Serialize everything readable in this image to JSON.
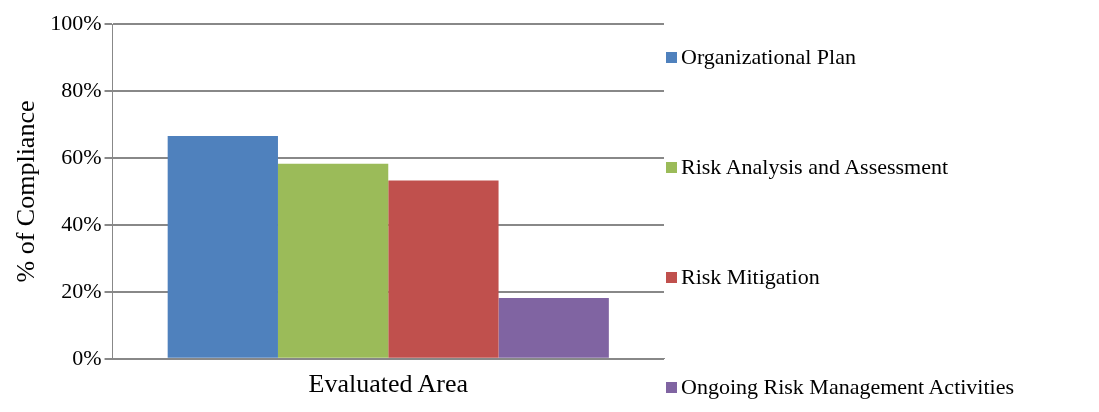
{
  "chart_data": {
    "type": "bar",
    "ylabel": "% of Compliance",
    "categories": [
      "Evaluated Area"
    ],
    "series": [
      {
        "name": "Organizational Plan",
        "color": "#4f81bd",
        "values": [
          66.6
        ]
      },
      {
        "name": "Risk Analysis and Assessment",
        "color": "#9bbb59",
        "values": [
          58.3
        ]
      },
      {
        "name": "Risk Mitigation",
        "color": "#c0504d",
        "values": [
          53.3
        ]
      },
      {
        "name": "Ongoing Risk Management Activities",
        "color": "#8064a2",
        "values": [
          18.2
        ]
      }
    ],
    "ylim": [
      0,
      100
    ],
    "yticks": [
      {
        "value": 0,
        "label": "0%"
      },
      {
        "value": 20,
        "label": "20%"
      },
      {
        "value": 40,
        "label": "40%"
      },
      {
        "value": 60,
        "label": "60%"
      },
      {
        "value": 80,
        "label": "80%"
      },
      {
        "value": 100,
        "label": "100%"
      }
    ],
    "grid": "y",
    "legend": "right"
  }
}
